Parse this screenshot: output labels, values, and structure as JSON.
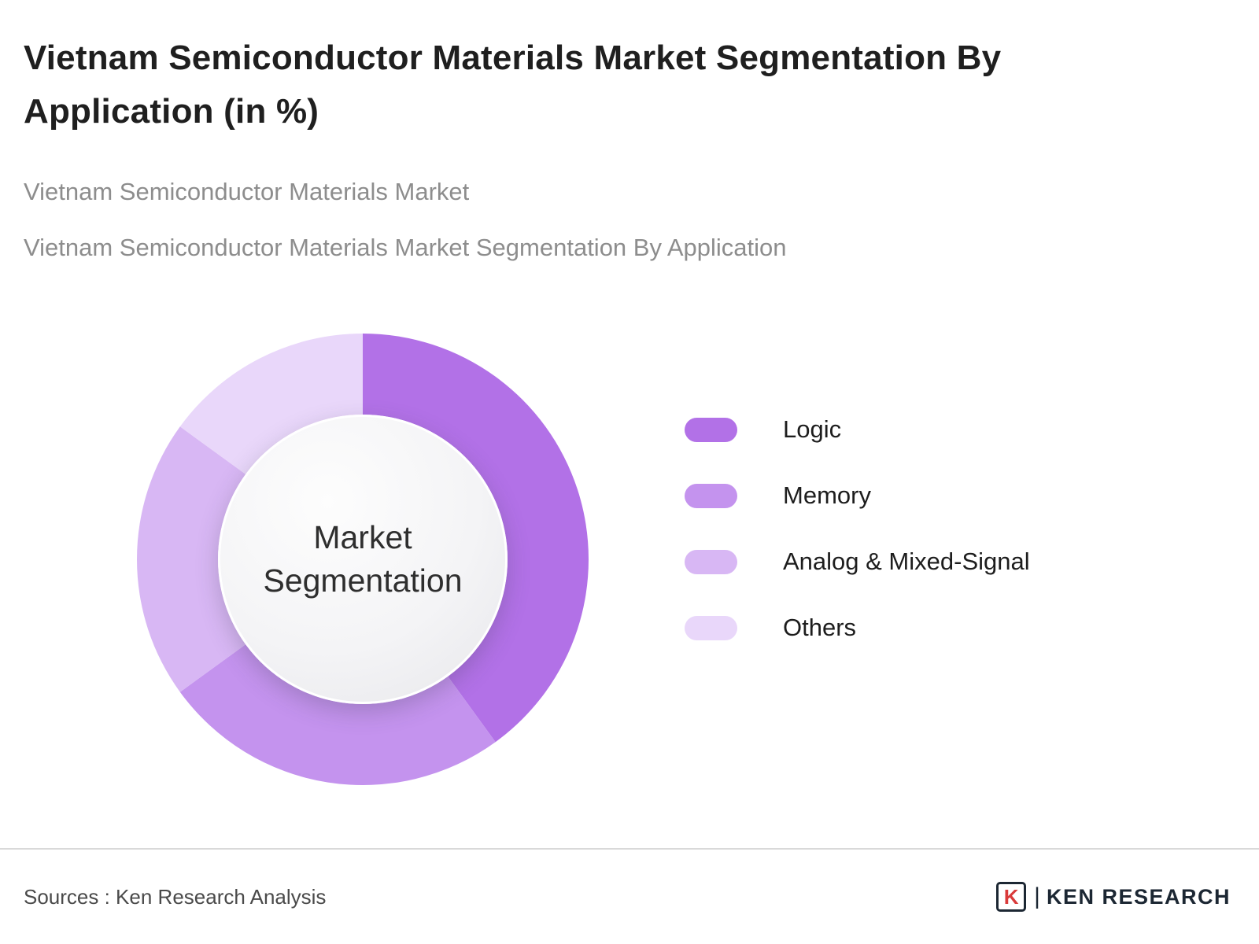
{
  "header": {
    "title": "Vietnam Semiconductor Materials Market Segmentation By Application (in %)",
    "subtitle1": "Vietnam Semiconductor Materials Market",
    "subtitle2": "Vietnam Semiconductor Materials Market Segmentation By Application"
  },
  "chart_data": {
    "type": "pie",
    "subtype": "donut",
    "unit": "%",
    "center_label": "Market Segmentation",
    "categories": [
      "Logic",
      "Memory",
      "Analog & Mixed-Signal",
      "Others"
    ],
    "values": [
      40,
      25,
      20,
      15
    ],
    "colors": [
      "#b271e7",
      "#c493ee",
      "#d8b7f4",
      "#e9d7fa"
    ],
    "legend_position": "right"
  },
  "footer": {
    "source": "Sources : Ken Research Analysis",
    "logo_letter": "K",
    "logo_text": "KEN RESEARCH"
  }
}
